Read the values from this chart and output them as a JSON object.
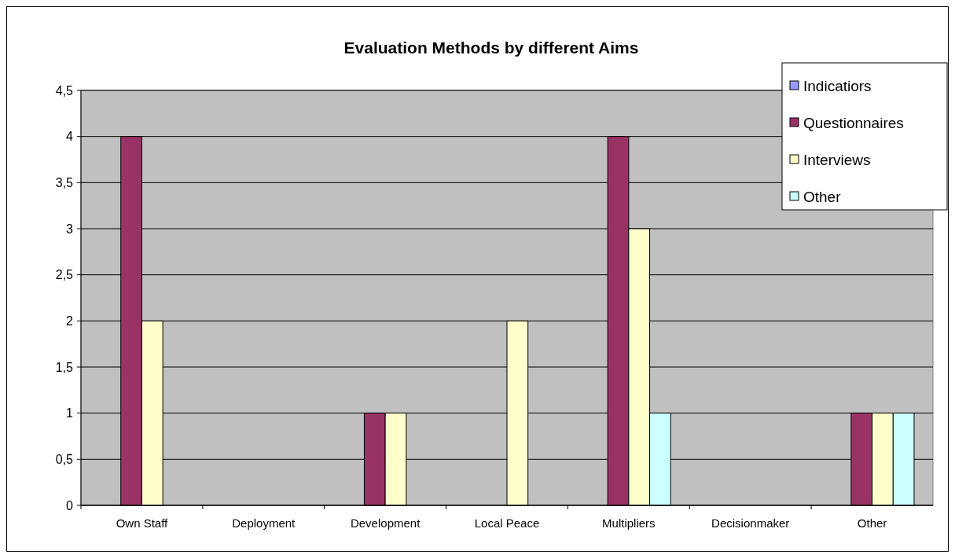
{
  "chart_data": {
    "type": "bar",
    "title": "Evaluation Methods by different Aims",
    "categories": [
      "Own Staff",
      "Deployment",
      "Development",
      "Local Peace",
      "Multipliers",
      "Decisionmaker",
      "Other"
    ],
    "series": [
      {
        "name": "Indicatiors",
        "color": "#9999ff",
        "values": [
          0,
          0,
          0,
          0,
          0,
          0,
          0
        ]
      },
      {
        "name": "Questionnaires",
        "color": "#993366",
        "values": [
          4,
          0,
          1,
          0,
          4,
          0,
          1
        ]
      },
      {
        "name": "Interviews",
        "color": "#ffffcc",
        "values": [
          2,
          0,
          1,
          2,
          3,
          0,
          1
        ]
      },
      {
        "name": "Other",
        "color": "#ccffff",
        "values": [
          0,
          0,
          0,
          0,
          1,
          0,
          1
        ]
      }
    ],
    "ylim": [
      0,
      4.5
    ],
    "yticks": [
      0,
      {
        "value": 0.5,
        "label": "0,5"
      },
      1,
      {
        "value": 1.5,
        "label": "1,5"
      },
      2,
      {
        "value": 2.5,
        "label": "2,5"
      },
      3,
      {
        "value": 3.5,
        "label": "3,5"
      },
      4,
      {
        "value": 4.5,
        "label": "4,5"
      }
    ],
    "grid": "y",
    "legend": "top right"
  }
}
